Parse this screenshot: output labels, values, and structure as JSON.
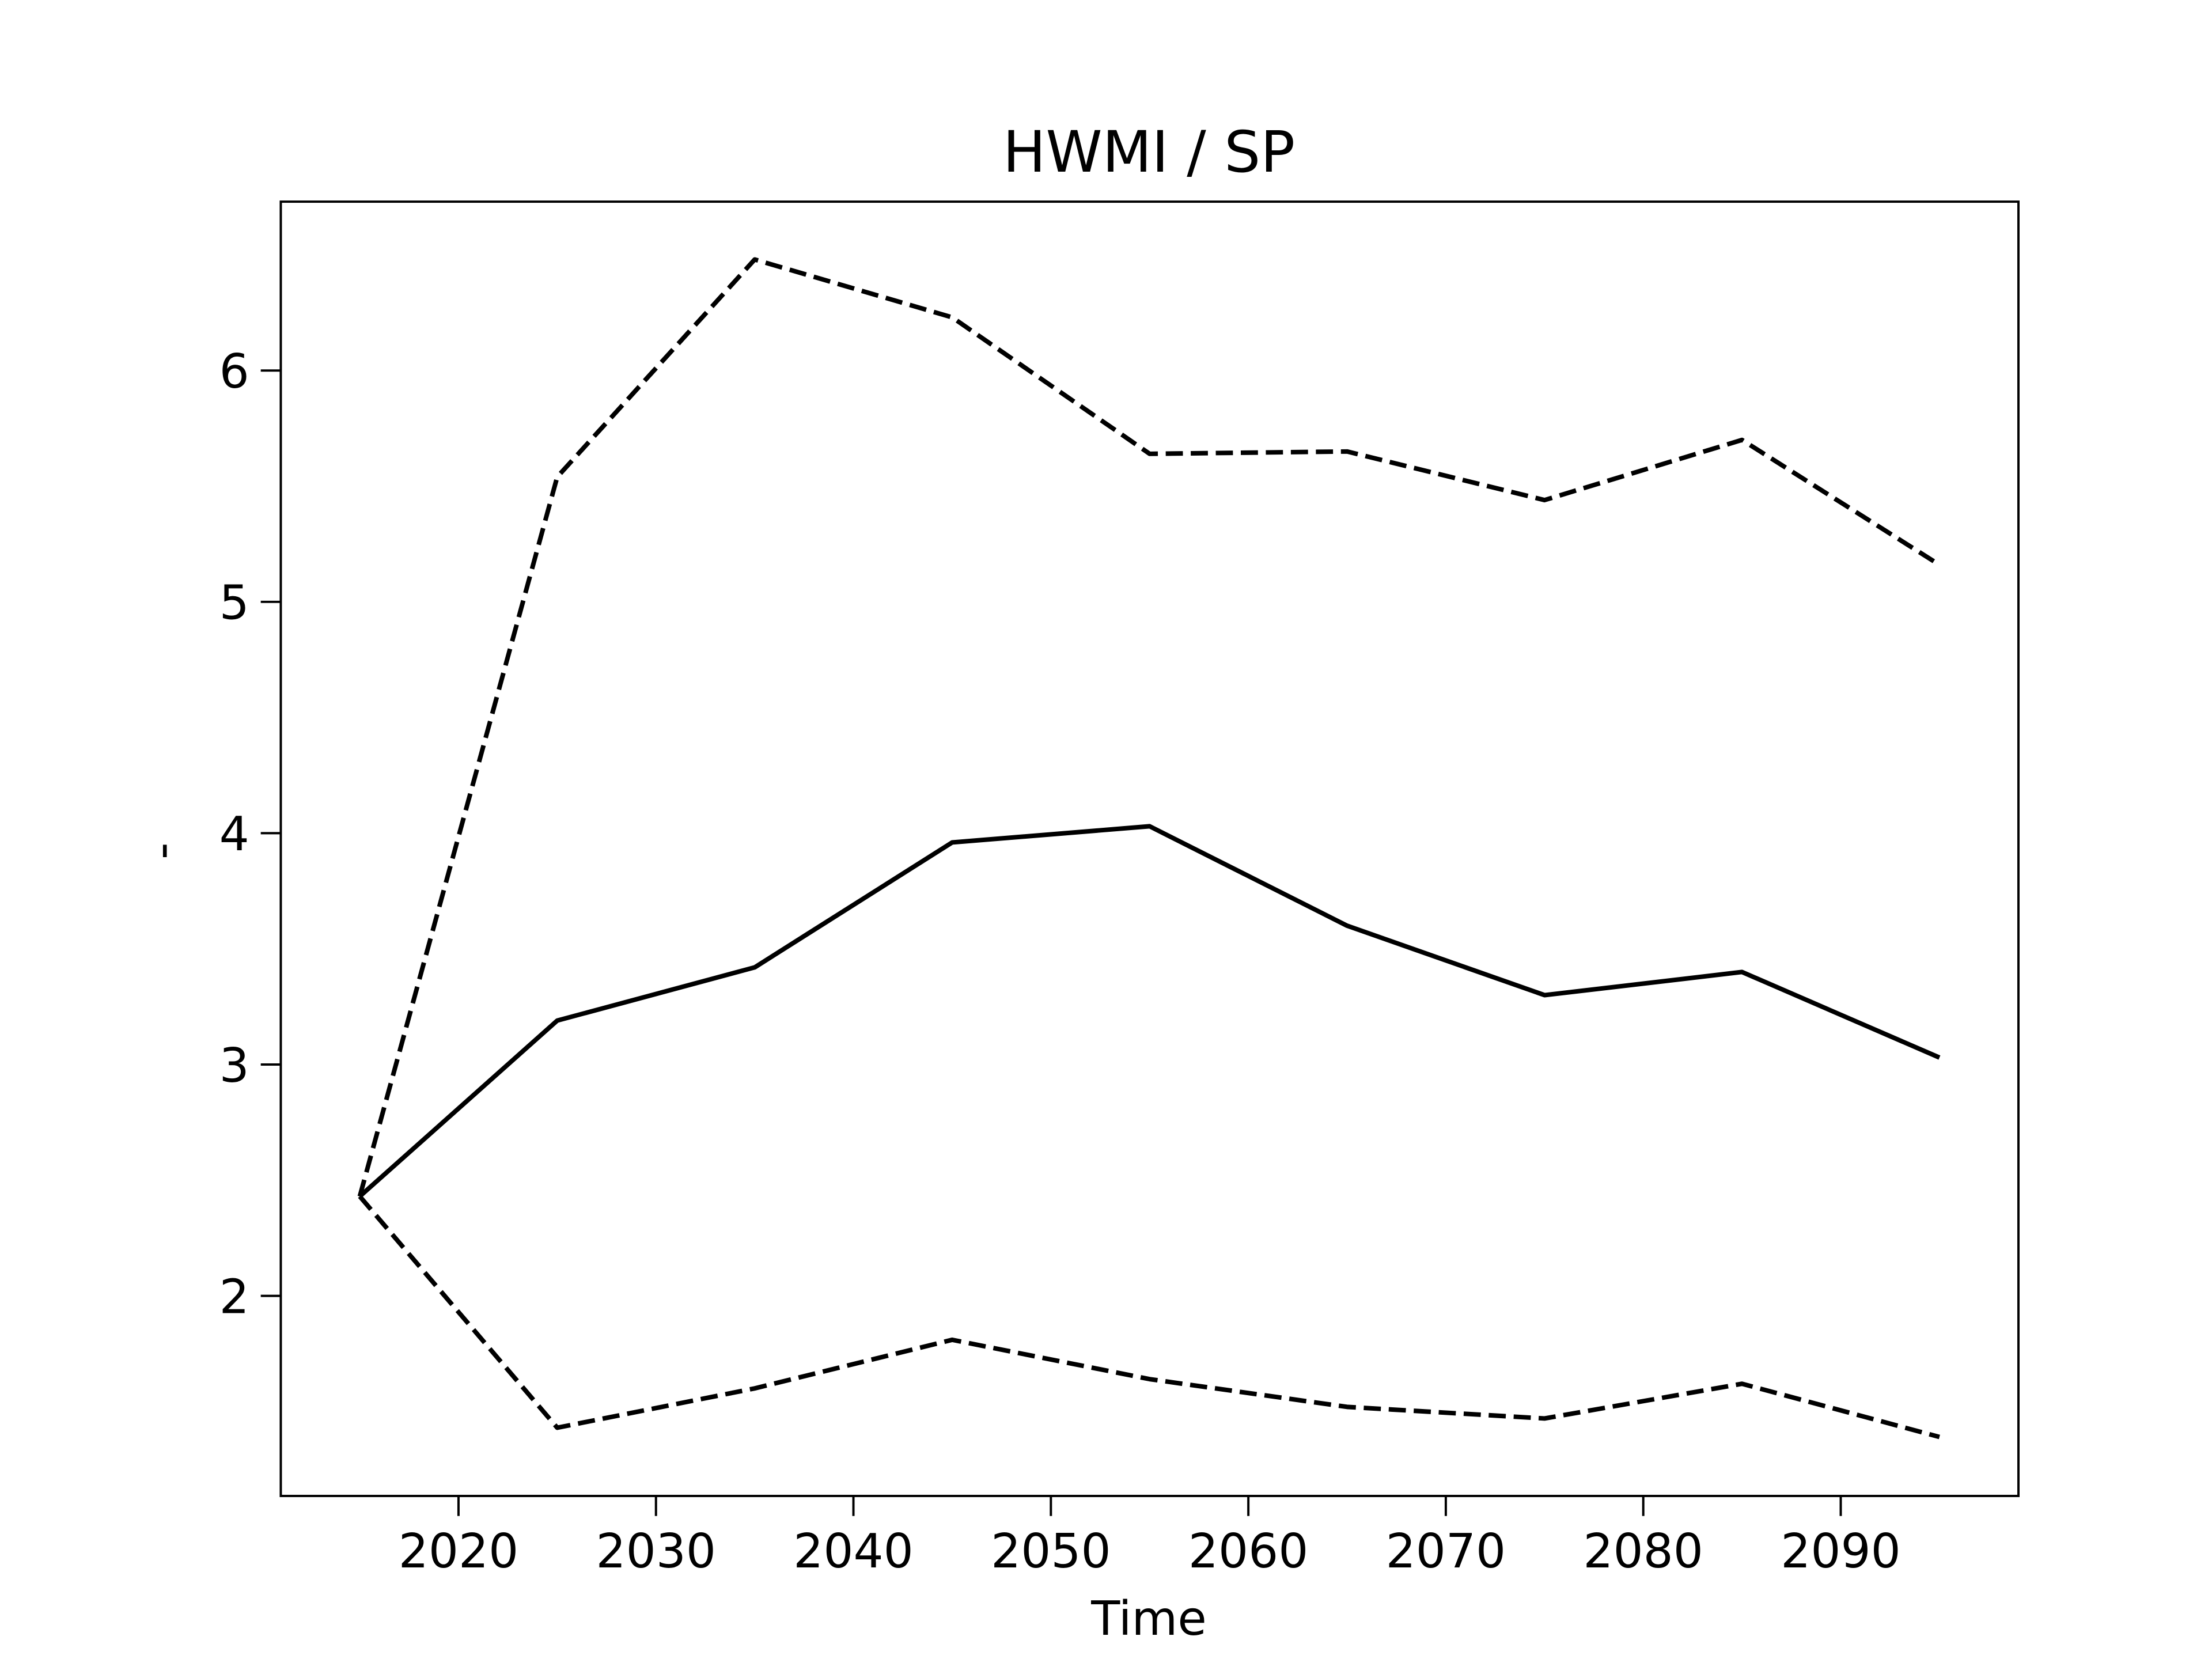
{
  "chart_data": {
    "type": "line",
    "title": "HWMI / SP",
    "xlabel": "Time",
    "ylabel": "-",
    "x": [
      2015,
      2025,
      2035,
      2045,
      2055,
      2065,
      2075,
      2085,
      2095
    ],
    "series": [
      {
        "color": "#000000",
        "dash": "solid",
        "values": [
          2.43,
          3.19,
          3.42,
          3.96,
          4.03,
          3.6,
          3.3,
          3.4,
          3.03
        ]
      },
      {
        "color": "#000000",
        "dash": "dashed",
        "values": [
          2.43,
          5.54,
          6.48,
          6.23,
          5.64,
          5.65,
          5.44,
          5.7,
          5.16
        ]
      },
      {
        "color": "#000000",
        "dash": "dashed",
        "values": [
          2.43,
          1.43,
          1.6,
          1.81,
          1.64,
          1.52,
          1.47,
          1.62,
          1.39
        ]
      }
    ],
    "xlim": [
      2011,
      2099
    ],
    "xticks": [
      2020,
      2030,
      2040,
      2050,
      2060,
      2070,
      2080,
      2090
    ],
    "ylim": [
      1.135,
      6.73
    ],
    "yticks": [
      2,
      3,
      4,
      5,
      6
    ],
    "grid": false
  }
}
